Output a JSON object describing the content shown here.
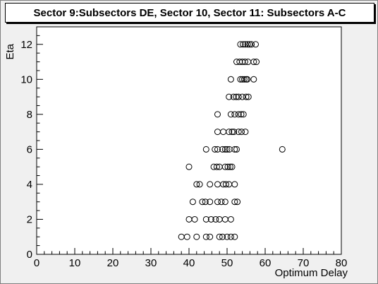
{
  "chart_data": {
    "type": "scatter",
    "title": "Sector 9:Subsectors DE, Sector 10, Sector 11: Subsectors A-C",
    "xlabel": "Optimum Delay",
    "ylabel": "Eta",
    "xlim": [
      0,
      80
    ],
    "ylim": [
      0,
      13
    ],
    "xticks": [
      0,
      10,
      20,
      30,
      40,
      50,
      60,
      70,
      80
    ],
    "yticks": [
      0,
      2,
      4,
      6,
      8,
      10,
      12
    ],
    "grid": false,
    "marker": "open-circle",
    "colors": {
      "background": "#ffffff",
      "frame": "#f0f0f0",
      "marker": "#000000"
    },
    "points": [
      [
        38,
        1
      ],
      [
        39.5,
        1
      ],
      [
        42,
        1
      ],
      [
        44.5,
        1
      ],
      [
        45.5,
        1
      ],
      [
        48,
        1
      ],
      [
        48.8,
        1
      ],
      [
        50,
        1
      ],
      [
        51,
        1
      ],
      [
        52,
        1
      ],
      [
        40,
        2
      ],
      [
        41.5,
        2
      ],
      [
        44.5,
        2
      ],
      [
        45.8,
        2
      ],
      [
        47,
        2
      ],
      [
        48,
        2
      ],
      [
        49.5,
        2
      ],
      [
        51,
        2
      ],
      [
        41,
        3
      ],
      [
        43.5,
        3
      ],
      [
        44.3,
        3
      ],
      [
        45.5,
        3
      ],
      [
        47.5,
        3
      ],
      [
        48.5,
        3
      ],
      [
        49.5,
        3
      ],
      [
        52,
        3
      ],
      [
        52.7,
        3
      ],
      [
        42,
        4
      ],
      [
        42.8,
        4
      ],
      [
        45.5,
        4
      ],
      [
        47.5,
        4
      ],
      [
        49,
        4
      ],
      [
        49.7,
        4
      ],
      [
        50.5,
        4
      ],
      [
        52,
        4
      ],
      [
        40,
        5
      ],
      [
        46.5,
        5
      ],
      [
        47.3,
        5
      ],
      [
        48,
        5
      ],
      [
        49.5,
        5
      ],
      [
        50.2,
        5
      ],
      [
        50.8,
        5
      ],
      [
        51.3,
        5
      ],
      [
        44.5,
        6
      ],
      [
        46.8,
        6
      ],
      [
        47.5,
        6
      ],
      [
        48.8,
        6
      ],
      [
        49.5,
        6
      ],
      [
        50,
        6
      ],
      [
        50.6,
        6
      ],
      [
        52,
        6
      ],
      [
        52.5,
        6
      ],
      [
        64.5,
        6
      ],
      [
        47.5,
        7
      ],
      [
        49,
        7
      ],
      [
        50.5,
        7
      ],
      [
        51.3,
        7
      ],
      [
        51.8,
        7
      ],
      [
        53,
        7
      ],
      [
        53.8,
        7
      ],
      [
        54.8,
        7
      ],
      [
        47.5,
        8
      ],
      [
        51,
        8
      ],
      [
        52,
        8
      ],
      [
        53,
        8
      ],
      [
        53.7,
        8
      ],
      [
        54.3,
        8
      ],
      [
        50.5,
        9
      ],
      [
        51.7,
        9
      ],
      [
        52.4,
        9
      ],
      [
        53,
        9
      ],
      [
        54,
        9
      ],
      [
        55,
        9
      ],
      [
        55.6,
        9
      ],
      [
        51,
        10
      ],
      [
        53.5,
        10
      ],
      [
        54,
        10
      ],
      [
        54.5,
        10
      ],
      [
        55,
        10
      ],
      [
        55.3,
        10
      ],
      [
        57,
        10
      ],
      [
        52.5,
        11
      ],
      [
        53.3,
        11
      ],
      [
        54,
        11
      ],
      [
        54.7,
        11
      ],
      [
        55.5,
        11
      ],
      [
        57,
        11
      ],
      [
        57.7,
        11
      ],
      [
        53.5,
        12
      ],
      [
        54.2,
        12
      ],
      [
        54.8,
        12
      ],
      [
        55.4,
        12
      ],
      [
        55.9,
        12
      ],
      [
        56.4,
        12
      ],
      [
        57.5,
        12
      ]
    ]
  }
}
